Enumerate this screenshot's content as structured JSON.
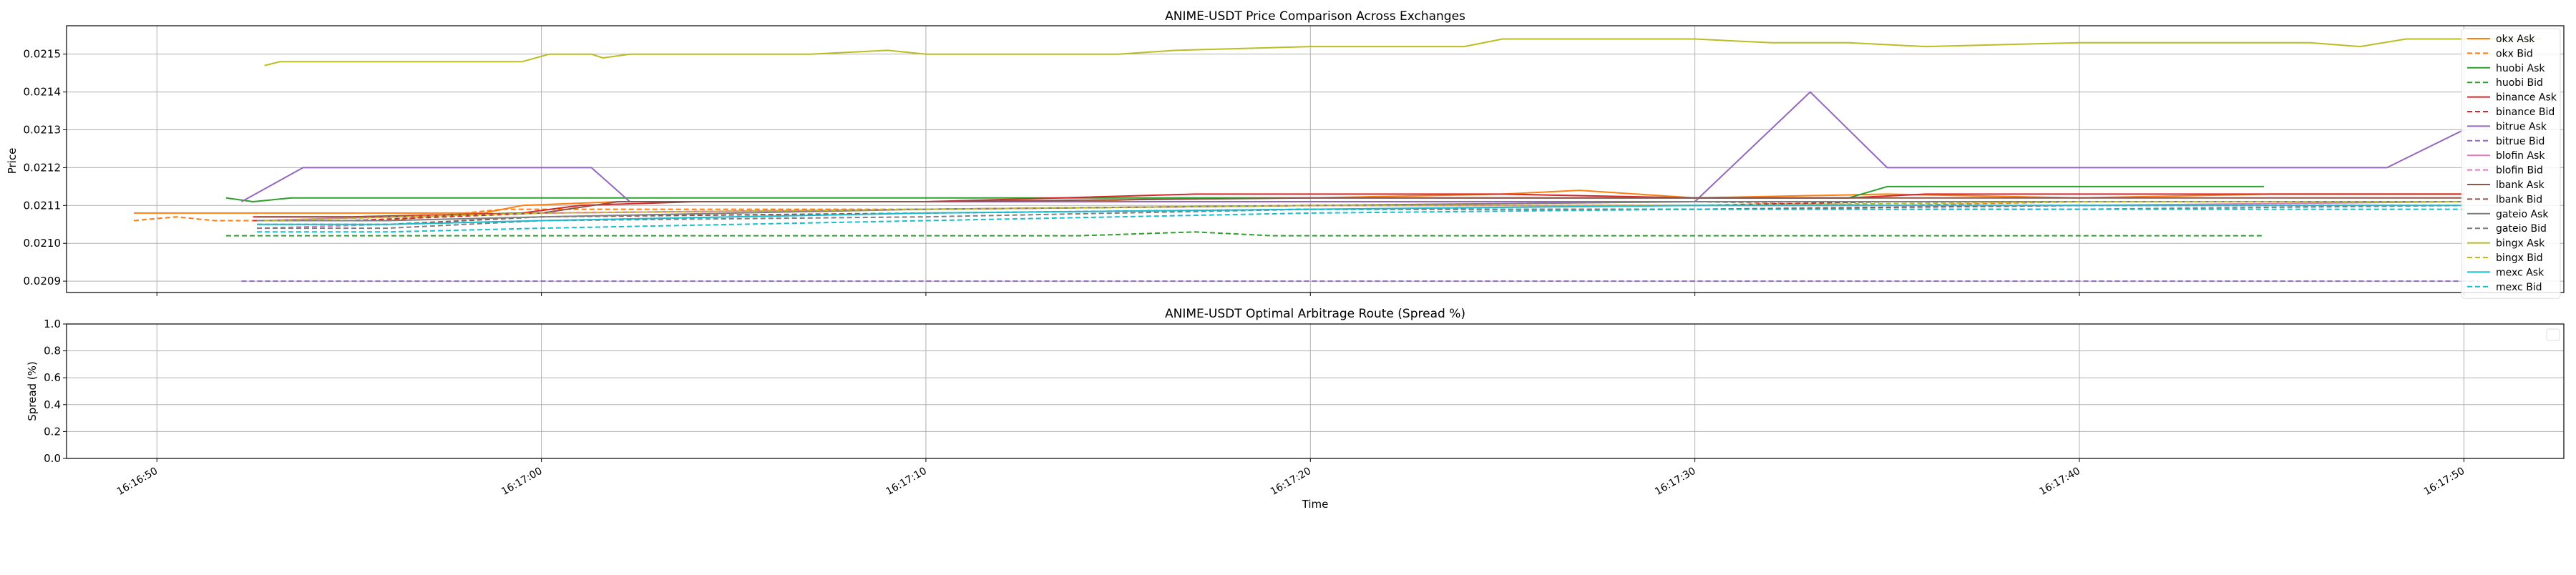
{
  "chart_data": [
    {
      "type": "line",
      "title": "ANIME-USDT Price Comparison Across Exchanges",
      "ylabel": "Price",
      "xlabel": "",
      "x_ticks": [
        "16:16:50",
        "16:17:00",
        "16:17:10",
        "16:17:20",
        "16:17:30",
        "16:17:40",
        "16:17:50"
      ],
      "x_ticks_seconds": [
        0,
        10,
        20,
        30,
        40,
        50,
        60
      ],
      "y_ticks": [
        "0.0209",
        "0.0210",
        "0.0211",
        "0.0212",
        "0.0213",
        "0.0214",
        "0.0215"
      ],
      "y_ticks_values": [
        0.0209,
        0.021,
        0.0211,
        0.0212,
        0.0213,
        0.0214,
        0.0215
      ],
      "xlim_seconds": [
        -2.35,
        62.6
      ],
      "ylim": [
        0.02087,
        0.021575
      ],
      "grid": true,
      "legend_position": "upper-right",
      "series": [
        {
          "name": "okx Ask",
          "color": "#ff7f0e",
          "dashed": false,
          "points": [
            [
              -0.6,
              0.02108
            ],
            [
              4,
              0.02108
            ],
            [
              8.5,
              0.02108
            ],
            [
              9.5,
              0.0211
            ],
            [
              12,
              0.02111
            ],
            [
              20,
              0.02111
            ],
            [
              24,
              0.02111
            ],
            [
              26.5,
              0.02112
            ],
            [
              30,
              0.02112
            ],
            [
              35,
              0.02113
            ],
            [
              37,
              0.02114
            ],
            [
              40,
              0.02112
            ],
            [
              45,
              0.02113
            ],
            [
              50,
              0.02112
            ],
            [
              55,
              0.02113
            ],
            [
              60,
              0.02113
            ]
          ]
        },
        {
          "name": "okx Bid",
          "color": "#ff7f0e",
          "dashed": true,
          "points": [
            [
              -0.6,
              0.02106
            ],
            [
              0.5,
              0.02107
            ],
            [
              1.5,
              0.02106
            ],
            [
              3,
              0.02106
            ],
            [
              6,
              0.02106
            ],
            [
              9,
              0.02109
            ],
            [
              12,
              0.02109
            ],
            [
              20,
              0.02109
            ],
            [
              30,
              0.0211
            ],
            [
              40,
              0.02111
            ],
            [
              45,
              0.0211
            ],
            [
              50,
              0.02111
            ],
            [
              56,
              0.02111
            ],
            [
              60,
              0.02111
            ]
          ]
        },
        {
          "name": "huobi Ask",
          "color": "#2ca02c",
          "dashed": false,
          "points": [
            [
              1.8,
              0.02112
            ],
            [
              2.5,
              0.02111
            ],
            [
              3.5,
              0.02112
            ],
            [
              6,
              0.02112
            ],
            [
              10,
              0.02112
            ],
            [
              20,
              0.02112
            ],
            [
              26,
              0.02112
            ],
            [
              30,
              0.02112
            ],
            [
              40,
              0.02112
            ],
            [
              44,
              0.02112
            ],
            [
              45,
              0.02115
            ],
            [
              50,
              0.02115
            ],
            [
              54.8,
              0.02115
            ]
          ]
        },
        {
          "name": "huobi Bid",
          "color": "#2ca02c",
          "dashed": true,
          "points": [
            [
              1.8,
              0.02102
            ],
            [
              5,
              0.02102
            ],
            [
              10,
              0.02102
            ],
            [
              15,
              0.02102
            ],
            [
              20,
              0.02102
            ],
            [
              24,
              0.02102
            ],
            [
              27,
              0.02103
            ],
            [
              29,
              0.02102
            ],
            [
              35,
              0.02102
            ],
            [
              40,
              0.02102
            ],
            [
              45,
              0.02102
            ],
            [
              50,
              0.02102
            ],
            [
              54.8,
              0.02102
            ]
          ]
        },
        {
          "name": "binance Ask",
          "color": "#d62728",
          "dashed": false,
          "points": [
            [
              2.5,
              0.02107
            ],
            [
              5,
              0.02107
            ],
            [
              9.5,
              0.02108
            ],
            [
              11,
              0.0211
            ],
            [
              14,
              0.02111
            ],
            [
              20,
              0.02111
            ],
            [
              27,
              0.02113
            ],
            [
              30,
              0.02113
            ],
            [
              35,
              0.02113
            ],
            [
              40,
              0.02112
            ],
            [
              44,
              0.02112
            ],
            [
              46,
              0.02113
            ],
            [
              50,
              0.02113
            ],
            [
              55,
              0.02113
            ],
            [
              60,
              0.02113
            ]
          ]
        },
        {
          "name": "binance Bid",
          "color": "#d62728",
          "dashed": true,
          "points": [
            [
              2.5,
              0.02106
            ],
            [
              5,
              0.02106
            ],
            [
              10,
              0.02108
            ],
            [
              20,
              0.02109
            ],
            [
              30,
              0.0211
            ],
            [
              40,
              0.0211
            ],
            [
              45,
              0.02111
            ],
            [
              50,
              0.02111
            ],
            [
              60,
              0.02111
            ]
          ]
        },
        {
          "name": "bitrue Ask",
          "color": "#9467bd",
          "dashed": false,
          "points": [
            [
              2.2,
              0.02111
            ],
            [
              3.8,
              0.0212
            ],
            [
              11.3,
              0.0212
            ],
            [
              12.3,
              0.02111
            ],
            [
              20,
              0.02111
            ],
            [
              30,
              0.02111
            ],
            [
              40,
              0.02111
            ],
            [
              43,
              0.0214
            ],
            [
              45,
              0.0212
            ],
            [
              50,
              0.0212
            ],
            [
              58,
              0.0212
            ],
            [
              60,
              0.0213
            ]
          ]
        },
        {
          "name": "bitrue Bid",
          "color": "#9467bd",
          "dashed": true,
          "points": [
            [
              2.2,
              0.0209
            ],
            [
              10,
              0.0209
            ],
            [
              20,
              0.0209
            ],
            [
              30,
              0.0209
            ],
            [
              40,
              0.0209
            ],
            [
              50,
              0.0209
            ],
            [
              60.4,
              0.0209
            ]
          ]
        },
        {
          "name": "blofin Ask",
          "color": "#e377c2",
          "dashed": false,
          "points": [
            [
              2.6,
              0.02106
            ],
            [
              6,
              0.02107
            ],
            [
              10,
              0.02108
            ],
            [
              20,
              0.02109
            ],
            [
              30,
              0.0211
            ],
            [
              40,
              0.0211
            ],
            [
              50,
              0.0211
            ],
            [
              60,
              0.02111
            ]
          ]
        },
        {
          "name": "blofin Bid",
          "color": "#e377c2",
          "dashed": true,
          "points": [
            [
              2.6,
              0.02104
            ],
            [
              6,
              0.02105
            ],
            [
              10,
              0.02106
            ],
            [
              20,
              0.02108
            ],
            [
              30,
              0.02109
            ],
            [
              40,
              0.02109
            ],
            [
              50,
              0.0211
            ],
            [
              60,
              0.0211
            ]
          ]
        },
        {
          "name": "lbank Ask",
          "color": "#8c564b",
          "dashed": false,
          "points": [
            [
              2.6,
              0.02107
            ],
            [
              6,
              0.02107
            ],
            [
              10,
              0.02108
            ],
            [
              12,
              0.02111
            ],
            [
              20,
              0.02111
            ],
            [
              30,
              0.02112
            ],
            [
              40,
              0.02112
            ],
            [
              50,
              0.02112
            ],
            [
              60,
              0.02112
            ]
          ]
        },
        {
          "name": "lbank Bid",
          "color": "#8c564b",
          "dashed": true,
          "points": [
            [
              2.6,
              0.02105
            ],
            [
              6,
              0.02105
            ],
            [
              10,
              0.02107
            ],
            [
              20,
              0.02108
            ],
            [
              30,
              0.02109
            ],
            [
              40,
              0.02109
            ],
            [
              50,
              0.0211
            ],
            [
              60,
              0.0211
            ]
          ]
        },
        {
          "name": "gateio Ask",
          "color": "#7f7f7f",
          "dashed": false,
          "points": [
            [
              2.6,
              0.02106
            ],
            [
              6,
              0.02106
            ],
            [
              10,
              0.02107
            ],
            [
              20,
              0.02109
            ],
            [
              30,
              0.0211
            ],
            [
              40,
              0.02111
            ],
            [
              50,
              0.02111
            ],
            [
              60,
              0.02111
            ]
          ]
        },
        {
          "name": "gateio Bid",
          "color": "#7f7f7f",
          "dashed": true,
          "points": [
            [
              2.6,
              0.02104
            ],
            [
              6,
              0.02104
            ],
            [
              10,
              0.02106
            ],
            [
              20,
              0.02107
            ],
            [
              30,
              0.02109
            ],
            [
              40,
              0.02109
            ],
            [
              50,
              0.02109
            ],
            [
              60,
              0.0211
            ]
          ]
        },
        {
          "name": "bingx Ask",
          "color": "#bcbd22",
          "dashed": false,
          "points": [
            [
              2.8,
              0.02147
            ],
            [
              3.2,
              0.02148
            ],
            [
              5,
              0.02148
            ],
            [
              9.5,
              0.02148
            ],
            [
              10.2,
              0.0215
            ],
            [
              11.3,
              0.0215
            ],
            [
              11.6,
              0.02149
            ],
            [
              12.3,
              0.0215
            ],
            [
              17,
              0.0215
            ],
            [
              19,
              0.02151
            ],
            [
              20,
              0.0215
            ],
            [
              25,
              0.0215
            ],
            [
              26.5,
              0.02151
            ],
            [
              30,
              0.02152
            ],
            [
              34,
              0.02152
            ],
            [
              35,
              0.02154
            ],
            [
              40,
              0.02154
            ],
            [
              42,
              0.02153
            ],
            [
              44,
              0.02153
            ],
            [
              46,
              0.02152
            ],
            [
              50,
              0.02153
            ],
            [
              56,
              0.02153
            ],
            [
              57.3,
              0.02152
            ],
            [
              58.5,
              0.02154
            ],
            [
              62,
              0.02154
            ]
          ]
        },
        {
          "name": "bingx Bid",
          "color": "#bcbd22",
          "dashed": true,
          "points": [
            [
              2.8,
              0.02106
            ],
            [
              10,
              0.02108
            ],
            [
              20,
              0.02109
            ],
            [
              30,
              0.0211
            ],
            [
              40,
              0.0211
            ],
            [
              50,
              0.02111
            ],
            [
              60,
              0.02111
            ]
          ]
        },
        {
          "name": "mexc Ask",
          "color": "#17becf",
          "dashed": false,
          "points": [
            [
              2.6,
              0.02105
            ],
            [
              6,
              0.02105
            ],
            [
              10,
              0.02106
            ],
            [
              20,
              0.02108
            ],
            [
              30,
              0.02109
            ],
            [
              40,
              0.0211
            ],
            [
              50,
              0.0211
            ],
            [
              60,
              0.0211
            ]
          ]
        },
        {
          "name": "mexc Bid",
          "color": "#17becf",
          "dashed": true,
          "points": [
            [
              2.6,
              0.02103
            ],
            [
              6,
              0.02103
            ],
            [
              10,
              0.02104
            ],
            [
              20,
              0.02106
            ],
            [
              30,
              0.02108
            ],
            [
              40,
              0.02109
            ],
            [
              50,
              0.02109
            ],
            [
              60,
              0.02109
            ]
          ]
        }
      ]
    },
    {
      "type": "line",
      "title": "ANIME-USDT Optimal Arbitrage Route (Spread %)",
      "xlabel": "Time",
      "ylabel": "Spread (%)",
      "x_ticks": [
        "16:16:50",
        "16:17:00",
        "16:17:10",
        "16:17:20",
        "16:17:30",
        "16:17:40",
        "16:17:50"
      ],
      "x_ticks_seconds": [
        0,
        10,
        20,
        30,
        40,
        50,
        60
      ],
      "y_ticks": [
        "0.0",
        "0.2",
        "0.4",
        "0.6",
        "0.8",
        "1.0"
      ],
      "y_ticks_values": [
        0.0,
        0.2,
        0.4,
        0.6,
        0.8,
        1.0
      ],
      "xlim_seconds": [
        -2.35,
        62.6
      ],
      "ylim": [
        0,
        1
      ],
      "grid": true,
      "legend_position": "upper-right",
      "series": []
    }
  ]
}
